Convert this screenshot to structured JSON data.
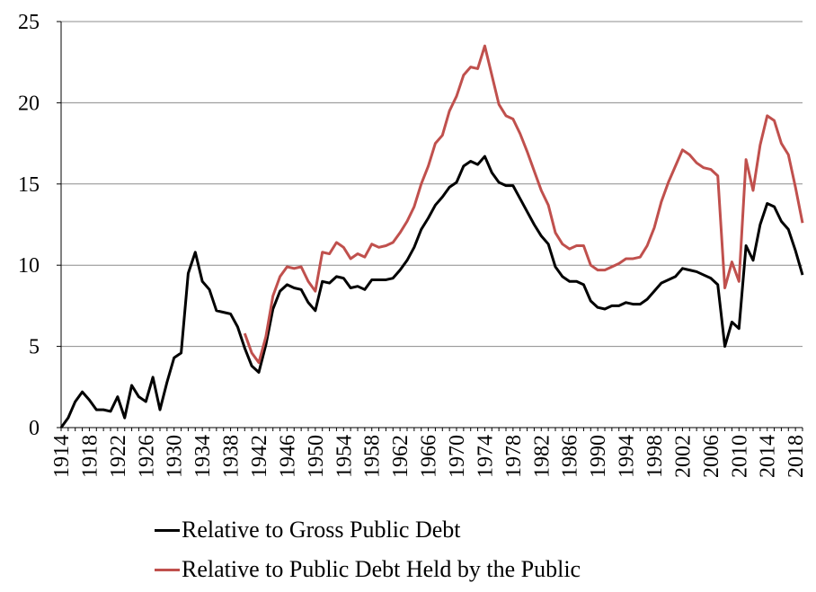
{
  "chart_data": {
    "type": "line",
    "title": "",
    "xlabel": "",
    "ylabel": "",
    "xlim": [
      1914,
      2019
    ],
    "ylim": [
      0,
      25
    ],
    "yticks": [
      0,
      5,
      10,
      15,
      20,
      25
    ],
    "ytick_labels": [
      "0",
      "5",
      "10",
      "15",
      "20",
      "25"
    ],
    "xticks": [
      1914,
      1918,
      1922,
      1926,
      1930,
      1934,
      1938,
      1942,
      1946,
      1950,
      1954,
      1958,
      1962,
      1966,
      1970,
      1974,
      1978,
      1982,
      1986,
      1990,
      1994,
      1998,
      2002,
      2006,
      2010,
      2014,
      2018
    ],
    "xtick_labels": [
      "1914",
      "1918",
      "1922",
      "1926",
      "1930",
      "1934",
      "1938",
      "1942",
      "1946",
      "1950",
      "1954",
      "1958",
      "1962",
      "1966",
      "1970",
      "1974",
      "1978",
      "1982",
      "1986",
      "1990",
      "1994",
      "1998",
      "2002",
      "2006",
      "2010",
      "2014",
      "2018"
    ],
    "grid": "horizontal",
    "legend_position": "bottom",
    "series": [
      {
        "name": "Relative to Gross Public Debt",
        "color": "#000000",
        "start_year": 1914,
        "values": [
          0.0,
          0.6,
          1.6,
          2.2,
          1.7,
          1.1,
          1.1,
          1.0,
          1.9,
          0.6,
          2.6,
          1.9,
          1.6,
          3.1,
          1.1,
          2.8,
          4.3,
          4.6,
          9.5,
          10.8,
          9.0,
          8.5,
          7.2,
          7.1,
          7.0,
          6.2,
          4.9,
          3.8,
          3.4,
          5.1,
          7.3,
          8.4,
          8.8,
          8.6,
          8.5,
          7.7,
          7.2,
          9.0,
          8.9,
          9.3,
          9.2,
          8.6,
          8.7,
          8.5,
          9.1,
          9.1,
          9.1,
          9.2,
          9.7,
          10.3,
          11.1,
          12.2,
          12.9,
          13.7,
          14.2,
          14.8,
          15.1,
          16.1,
          16.4,
          16.2,
          16.7,
          15.7,
          15.1,
          14.9,
          14.9,
          14.1,
          13.3,
          12.5,
          11.8,
          11.3,
          9.9,
          9.3,
          9.0,
          9.0,
          8.8,
          7.8,
          7.4,
          7.3,
          7.5,
          7.5,
          7.7,
          7.6,
          7.6,
          7.9,
          8.4,
          8.9,
          9.1,
          9.3,
          9.8,
          9.7,
          9.6,
          9.4,
          9.2,
          8.8,
          5.0,
          6.5,
          6.1,
          11.2,
          10.3,
          12.5,
          13.8,
          13.6,
          12.7,
          12.2,
          10.9,
          9.4
        ]
      },
      {
        "name": "Relative to Public Debt Held by the Public",
        "color": "#c0504d",
        "start_year": 1940,
        "values": [
          5.8,
          4.6,
          4.0,
          5.6,
          8.1,
          9.3,
          9.9,
          9.8,
          9.9,
          9.0,
          8.4,
          10.8,
          10.7,
          11.4,
          11.1,
          10.4,
          10.7,
          10.5,
          11.3,
          11.1,
          11.2,
          11.4,
          12.0,
          12.7,
          13.6,
          15.0,
          16.1,
          17.5,
          18.0,
          19.5,
          20.4,
          21.7,
          22.2,
          22.1,
          23.5,
          21.7,
          19.9,
          19.2,
          19.0,
          18.1,
          17.0,
          15.8,
          14.6,
          13.7,
          12.0,
          11.3,
          11.0,
          11.2,
          11.2,
          10.0,
          9.7,
          9.7,
          9.9,
          10.1,
          10.4,
          10.4,
          10.5,
          11.2,
          12.3,
          13.9,
          15.1,
          16.1,
          17.1,
          16.8,
          16.3,
          16.0,
          15.9,
          15.5,
          8.6,
          10.2,
          9.0,
          16.5,
          14.6,
          17.4,
          19.2,
          18.9,
          17.5,
          16.8,
          14.8,
          12.6
        ]
      }
    ]
  }
}
